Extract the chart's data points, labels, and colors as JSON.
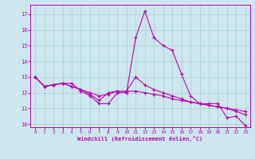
{
  "xlabel": "Windchill (Refroidissement éolien,°C)",
  "background_color": "#cce8ee",
  "grid_color": "#aacccc",
  "line_color": "#bb00aa",
  "x_hours": [
    0,
    1,
    2,
    3,
    4,
    5,
    6,
    7,
    8,
    9,
    10,
    11,
    12,
    13,
    14,
    15,
    16,
    17,
    18,
    19,
    20,
    21,
    22,
    23
  ],
  "series1": [
    13.0,
    12.4,
    12.5,
    12.6,
    12.6,
    12.1,
    11.8,
    11.3,
    11.3,
    12.0,
    12.0,
    15.5,
    17.2,
    15.5,
    15.0,
    14.7,
    13.2,
    11.8,
    11.3,
    11.3,
    11.3,
    10.4,
    10.5,
    9.9
  ],
  "series2": [
    13.0,
    12.4,
    12.5,
    12.6,
    12.4,
    12.2,
    12.0,
    11.8,
    11.9,
    12.1,
    12.1,
    12.1,
    12.0,
    11.9,
    11.8,
    11.6,
    11.5,
    11.4,
    11.3,
    11.2,
    11.1,
    11.0,
    10.9,
    10.8
  ],
  "series3": [
    13.0,
    12.4,
    12.5,
    12.6,
    12.4,
    12.2,
    11.9,
    11.5,
    12.0,
    12.1,
    12.1,
    13.0,
    12.5,
    12.2,
    12.0,
    11.8,
    11.6,
    11.4,
    11.3,
    11.2,
    11.1,
    11.0,
    10.8,
    10.6
  ],
  "ylim_min": 9.8,
  "ylim_max": 17.6,
  "yticks": [
    10,
    11,
    12,
    13,
    14,
    15,
    16,
    17
  ],
  "xticks": [
    0,
    1,
    2,
    3,
    4,
    5,
    6,
    7,
    8,
    9,
    10,
    11,
    12,
    13,
    14,
    15,
    16,
    17,
    18,
    19,
    20,
    21,
    22,
    23
  ]
}
